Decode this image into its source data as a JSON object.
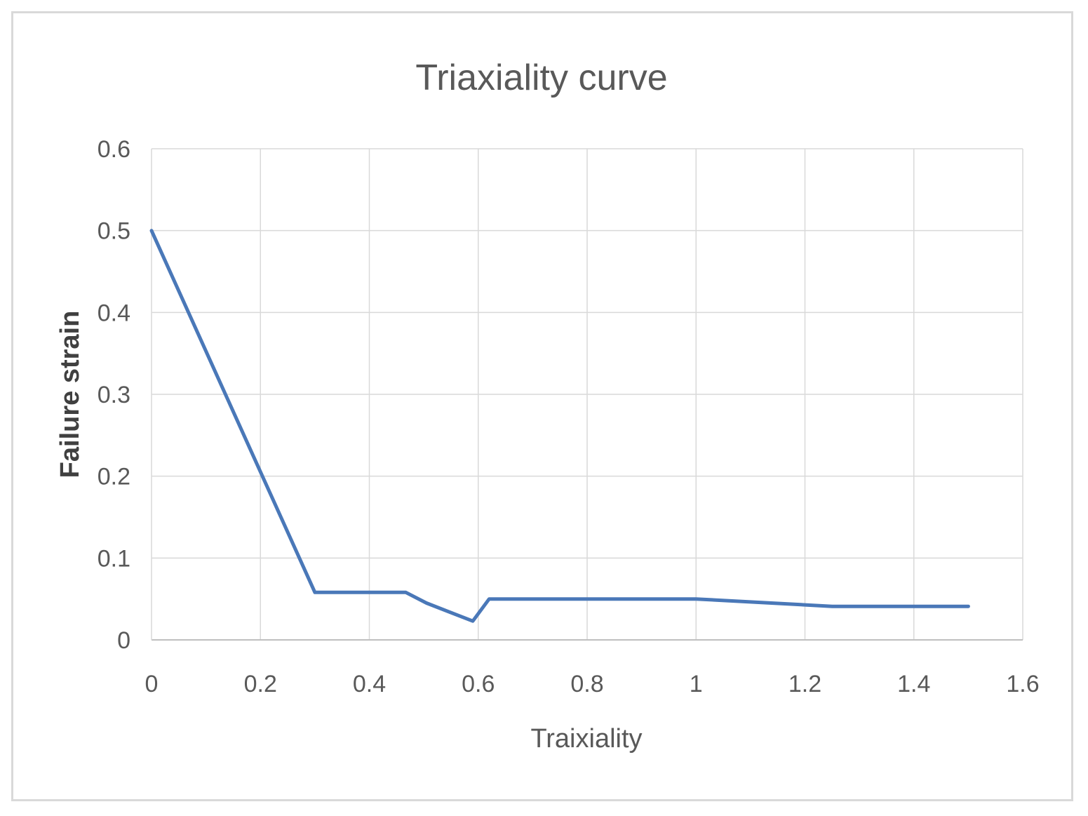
{
  "chart_data": {
    "type": "line",
    "title": "Triaxiality curve",
    "xlabel": "Traixiality",
    "ylabel": "Failure strain",
    "xlim": [
      0,
      1.6
    ],
    "ylim": [
      0,
      0.6
    ],
    "xticks": [
      "0",
      "0.2",
      "0.4",
      "0.6",
      "0.8",
      "1",
      "1.2",
      "1.4",
      "1.6"
    ],
    "yticks": [
      "0",
      "0.1",
      "0.2",
      "0.3",
      "0.4",
      "0.5",
      "0.6"
    ],
    "grid": true,
    "series": [
      {
        "color": "#4a78b8",
        "x": [
          0,
          0.3,
          0.467,
          0.505,
          0.59,
          0.62,
          1.0,
          1.25,
          1.5
        ],
        "y": [
          0.5,
          0.058,
          0.058,
          0.045,
          0.023,
          0.05,
          0.05,
          0.041,
          0.041
        ]
      }
    ]
  }
}
